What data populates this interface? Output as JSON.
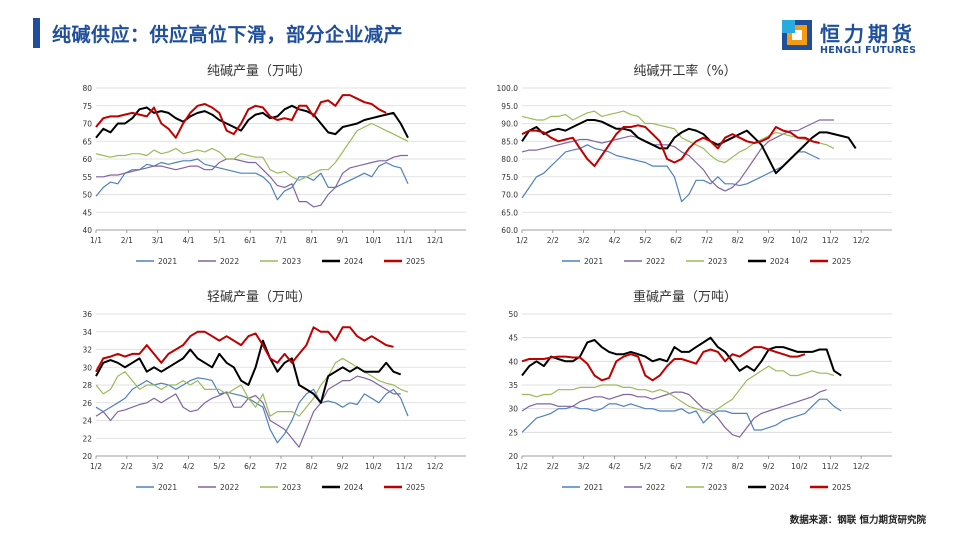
{
  "header": {
    "title": "纯碱供应：供应高位下滑，部分企业减产"
  },
  "logo": {
    "name_cn": "恒力期货",
    "name_en": "HENGLI FUTURES"
  },
  "footer": {
    "source": "数据来源：钢联  恒力期货研究院"
  },
  "colors": {
    "2021": "#4f81bd",
    "2022": "#8064a2",
    "2023": "#9bbb59",
    "2024": "#000000",
    "2025": "#c00000",
    "brand": "#1f4e9c"
  },
  "chart_data": [
    {
      "type": "line",
      "title": "纯碱产量（万吨）",
      "ylim": [
        40,
        80
      ],
      "ystep": 5,
      "ydecimals": 0,
      "xticks": [
        "1/1",
        "2/1",
        "3/1",
        "4/1",
        "5/1",
        "6/1",
        "7/1",
        "8/1",
        "9/1",
        "10/1",
        "11/1",
        "12/1"
      ],
      "legend": [
        "2021",
        "2022",
        "2023",
        "2024",
        "2025"
      ],
      "series": [
        {
          "name": "2021",
          "values": [
            49.5,
            52,
            53.5,
            53,
            56,
            57,
            57,
            58.5,
            58,
            59,
            58.5,
            59,
            59.5,
            59.5,
            60,
            58.5,
            58,
            57.5,
            57,
            56.5,
            56,
            56,
            56,
            55,
            53,
            48.5,
            51,
            52,
            55,
            55,
            54,
            56,
            52,
            52,
            53,
            54,
            55,
            56,
            55,
            58,
            59,
            58,
            57.5,
            53
          ]
        },
        {
          "name": "2022",
          "values": [
            55,
            55,
            55.5,
            55.5,
            56,
            56.5,
            57,
            57.5,
            58,
            58,
            57.5,
            57,
            57.5,
            58,
            58,
            57,
            57,
            59,
            60,
            60,
            59.5,
            59,
            59,
            57,
            55,
            52.5,
            52,
            53,
            48,
            48,
            46.5,
            47,
            50,
            52,
            56,
            57.5,
            58,
            58.5,
            59,
            59.5,
            59.5,
            60.5,
            61,
            61
          ]
        },
        {
          "name": "2023",
          "values": [
            61.5,
            61,
            60.5,
            61,
            61,
            61.5,
            61.5,
            61,
            62.5,
            61.5,
            62,
            63,
            61.5,
            62,
            62.5,
            62,
            63,
            62,
            60,
            60,
            61.5,
            61,
            60.5,
            60.5,
            57,
            56,
            56.5,
            55,
            54,
            55,
            56,
            57,
            57,
            59,
            62,
            65,
            68,
            69,
            70,
            69,
            68,
            67,
            66,
            65
          ]
        },
        {
          "name": "2024",
          "values": [
            66,
            68.5,
            67.5,
            70,
            70,
            71.5,
            74,
            74.5,
            73,
            73.5,
            73,
            71.5,
            70.5,
            72,
            73,
            73.5,
            72.5,
            71,
            70,
            69,
            68,
            71,
            72.5,
            73,
            71.5,
            72,
            74,
            75,
            74,
            73.5,
            72.5,
            70,
            67.5,
            67,
            69,
            69.5,
            70,
            71,
            71.5,
            72,
            72.5,
            73,
            70,
            66
          ]
        },
        {
          "name": "2025",
          "values": [
            69,
            71.5,
            72,
            72,
            72.5,
            73,
            72.5,
            72,
            74.5,
            70,
            68.5,
            66,
            70,
            73,
            75,
            75.5,
            74.5,
            73,
            68,
            67,
            70,
            74,
            75,
            74.5,
            72,
            71,
            71.5,
            71,
            75,
            75,
            72,
            76,
            76.5,
            75,
            78,
            78,
            77,
            76,
            75.5,
            74,
            73
          ]
        }
      ]
    },
    {
      "type": "line",
      "title": "纯碱开工率（%）",
      "ylim": [
        60,
        100
      ],
      "ystep": 5,
      "ydecimals": 1,
      "xticks": [
        "1/2",
        "2/2",
        "3/2",
        "4/2",
        "5/2",
        "6/2",
        "7/2",
        "8/2",
        "9/2",
        "10/2",
        "11/2",
        "12/2"
      ],
      "legend": [
        "2021",
        "2022",
        "2023",
        "2024",
        "2025"
      ],
      "series": [
        {
          "name": "2021",
          "values": [
            69,
            72,
            75,
            76,
            78,
            80,
            82,
            82.5,
            83,
            84,
            83,
            82.5,
            82,
            81,
            80.5,
            80,
            79.5,
            79,
            78,
            78,
            78,
            75,
            68,
            70,
            74,
            74,
            73,
            75,
            73,
            73,
            72.5,
            73,
            74,
            75,
            76,
            77,
            78,
            80,
            82,
            82,
            81,
            80
          ]
        },
        {
          "name": "2022",
          "values": [
            82,
            82.5,
            82.5,
            83,
            83.5,
            84,
            84.5,
            85,
            85.5,
            85.5,
            85,
            84.5,
            85,
            85.5,
            86,
            86.5,
            86,
            85,
            84,
            84,
            84,
            83.5,
            82,
            81,
            79,
            77,
            74,
            72,
            71,
            72,
            74,
            77,
            80,
            83,
            85,
            86,
            87,
            88,
            88,
            89,
            90,
            91,
            91,
            91
          ]
        },
        {
          "name": "2023",
          "values": [
            92,
            91.5,
            91,
            91,
            92,
            92,
            92.5,
            91,
            92,
            93,
            93.5,
            92,
            92.5,
            93,
            93.5,
            92.5,
            92,
            90,
            90,
            89.5,
            89,
            88.5,
            86,
            85,
            84,
            83,
            81,
            79.5,
            79,
            80.5,
            82,
            83,
            84.5,
            85.5,
            86.5,
            87.5,
            87,
            86.5,
            86,
            85.5,
            85,
            84.5,
            84,
            83
          ]
        },
        {
          "name": "2024",
          "values": [
            85,
            88,
            89,
            87,
            88,
            88.5,
            88,
            89,
            90,
            91,
            91,
            90.5,
            89.5,
            88.5,
            88.5,
            88,
            86,
            85,
            84,
            83,
            83,
            86,
            87.5,
            88.5,
            88,
            87,
            85,
            84,
            85,
            86,
            87,
            88,
            86,
            84,
            80,
            76,
            78,
            80,
            82,
            84,
            86,
            87.5,
            87.5,
            87,
            86.5,
            86,
            83
          ]
        },
        {
          "name": "2025",
          "values": [
            87,
            88,
            88,
            87.5,
            86,
            85,
            85.5,
            86,
            83,
            80,
            78,
            81,
            84,
            87,
            89,
            89,
            89.5,
            89,
            87,
            85,
            80,
            79,
            80,
            83,
            85,
            86,
            85,
            83,
            86,
            87,
            86,
            85,
            84.5,
            85,
            86,
            89,
            88,
            87.5,
            86,
            86,
            85,
            84.5
          ]
        }
      ]
    },
    {
      "type": "line",
      "title": "轻碱产量（万吨）",
      "ylim": [
        20,
        36
      ],
      "ystep": 2,
      "ydecimals": 0,
      "xticks": [
        "1/2",
        "2/2",
        "3/2",
        "4/2",
        "5/2",
        "6/2",
        "7/2",
        "8/2",
        "9/2",
        "10/2",
        "11/2",
        "12/2"
      ],
      "legend": [
        "2021",
        "2022",
        "2023",
        "2024",
        "2025"
      ],
      "series": [
        {
          "name": "2021",
          "values": [
            25.5,
            25,
            25.5,
            26,
            26.5,
            27.5,
            28,
            28.5,
            28,
            28.2,
            28,
            27.5,
            28,
            28.5,
            28.8,
            28.7,
            28.5,
            27,
            27.2,
            27,
            26.8,
            26.5,
            26,
            25.5,
            23,
            21.5,
            22.5,
            24,
            26,
            27,
            27.5,
            26,
            26.2,
            26,
            25.5,
            26,
            25.8,
            27,
            26.5,
            26,
            27,
            27.5,
            26.5,
            24.5
          ]
        },
        {
          "name": "2022",
          "values": [
            24.5,
            25,
            24,
            25,
            25.2,
            25.5,
            25.8,
            26,
            26.5,
            26,
            26.5,
            27,
            25.5,
            25,
            25.2,
            26,
            26.5,
            26.8,
            27.2,
            25.5,
            25.5,
            26.5,
            26.8,
            26,
            24,
            23.5,
            23,
            22,
            21,
            23,
            25,
            26,
            27.5,
            28,
            28.5,
            28.5,
            29,
            28.8,
            28.5,
            28,
            27.5,
            27,
            27
          ]
        },
        {
          "name": "2023",
          "values": [
            28,
            27,
            27.5,
            29,
            29.5,
            28.5,
            27.5,
            28,
            28,
            27.5,
            28,
            28,
            28.5,
            28,
            28.5,
            27.5,
            27.5,
            27.5,
            27,
            27.5,
            28,
            26.5,
            25.5,
            27,
            24.5,
            25,
            25,
            25,
            24.5,
            25.5,
            26.5,
            28,
            29,
            30.5,
            31,
            30.5,
            30,
            29.5,
            29,
            28.5,
            28.2,
            28,
            27.5,
            27.2
          ]
        },
        {
          "name": "2024",
          "values": [
            29,
            30.5,
            30.8,
            30.5,
            30,
            30.5,
            31,
            29.5,
            30,
            29.5,
            30,
            30.5,
            31,
            32,
            31,
            30.5,
            30,
            31.5,
            30.5,
            30,
            28.5,
            28,
            30,
            33,
            31,
            29.5,
            30.5,
            31,
            28,
            27.5,
            27,
            26,
            29,
            29.5,
            30,
            29.5,
            30,
            29.5,
            29.5,
            29.5,
            30.5,
            29.5,
            29.2
          ]
        },
        {
          "name": "2025",
          "values": [
            29.5,
            31,
            31.2,
            31.5,
            31.2,
            31.5,
            31.5,
            32.5,
            31.5,
            30.5,
            31.5,
            32,
            32.5,
            33.5,
            34,
            34,
            33.5,
            33,
            33.5,
            33,
            32.5,
            33.5,
            33.8,
            32.5,
            31,
            30.5,
            31.5,
            30.5,
            31.5,
            32.5,
            34.5,
            34,
            34,
            33,
            34.5,
            34.5,
            33.5,
            33,
            33.5,
            33,
            32.5,
            32.3
          ]
        }
      ]
    },
    {
      "type": "line",
      "title": "重碱产量（万吨）",
      "ylim": [
        20,
        50
      ],
      "ystep": 5,
      "ydecimals": 0,
      "xticks": [
        "1/2",
        "2/2",
        "3/2",
        "4/2",
        "5/2",
        "6/2",
        "7/2",
        "8/2",
        "9/2",
        "10/2",
        "11/2",
        "12/2"
      ],
      "legend": [
        "2021",
        "2022",
        "2023",
        "2024",
        "2025"
      ],
      "series": [
        {
          "name": "2021",
          "values": [
            25,
            26.5,
            28,
            28.5,
            29,
            30,
            30,
            30.5,
            30,
            30,
            29.5,
            30,
            31,
            31,
            30.5,
            31,
            30.5,
            30,
            30,
            29.5,
            29.5,
            29.5,
            30,
            29,
            29.5,
            27,
            28.5,
            29.5,
            29.5,
            29,
            29,
            29,
            25.5,
            25.5,
            26,
            26.5,
            27.5,
            28,
            28.5,
            29,
            30.5,
            32,
            32,
            30.5,
            29.5
          ]
        },
        {
          "name": "2022",
          "values": [
            29.5,
            30.5,
            31,
            31,
            31,
            30.5,
            30.5,
            30.5,
            31.5,
            32,
            32.5,
            32.5,
            32,
            32.5,
            33,
            33,
            32.5,
            32.5,
            32,
            32.5,
            33,
            33.5,
            33.5,
            33,
            31.5,
            30,
            29.5,
            28,
            26,
            24.5,
            24,
            26,
            28,
            29,
            29.5,
            30,
            30.5,
            31,
            31.5,
            32,
            32.5,
            33.5,
            34
          ]
        },
        {
          "name": "2023",
          "values": [
            33,
            33,
            32.5,
            33,
            33,
            34,
            34,
            34,
            34.5,
            34.5,
            34.5,
            35,
            35,
            35,
            34.5,
            34.5,
            34,
            34,
            33.5,
            34,
            33.5,
            32.5,
            31.5,
            30.5,
            30,
            29.5,
            29,
            30,
            31,
            32,
            34,
            36,
            37,
            38,
            39,
            38,
            38,
            37,
            37,
            37.5,
            38,
            37.5,
            37.5,
            37
          ]
        },
        {
          "name": "2024",
          "values": [
            37,
            39,
            40,
            39,
            41,
            40.5,
            40,
            40,
            41,
            44,
            44.5,
            43,
            42,
            41.5,
            41.5,
            42,
            41.5,
            41,
            40,
            40.5,
            40,
            43,
            42,
            42,
            43,
            44,
            45,
            43,
            42,
            40,
            38,
            39,
            38,
            40,
            42.5,
            43,
            43,
            42.5,
            42,
            42,
            42,
            42.5,
            42.5,
            38,
            37
          ]
        },
        {
          "name": "2025",
          "values": [
            40,
            40.5,
            40.5,
            40.5,
            40.8,
            41,
            41,
            40.8,
            40.8,
            39.5,
            37,
            36,
            36.5,
            40,
            41,
            41.5,
            41,
            37,
            36,
            37,
            39,
            40.5,
            40.5,
            40,
            39.5,
            42,
            42.5,
            42,
            40,
            41.5,
            41,
            42,
            43,
            43,
            42.5,
            42,
            41.5,
            41,
            41,
            41.5
          ]
        }
      ]
    }
  ]
}
